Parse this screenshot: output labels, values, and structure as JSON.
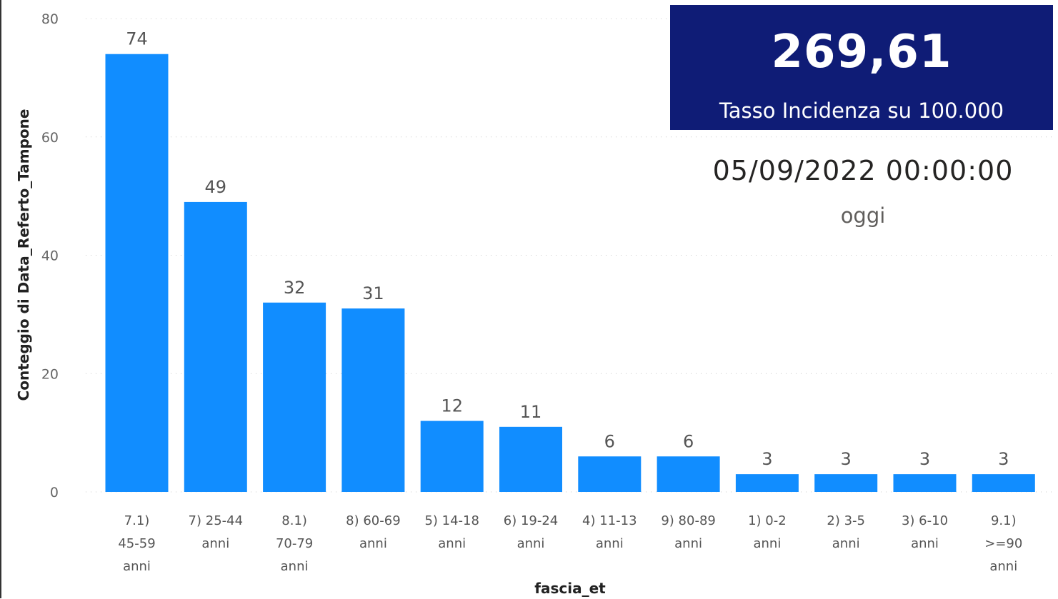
{
  "chart_data": {
    "type": "bar",
    "categories": [
      [
        "7.1)",
        "45-59",
        "anni"
      ],
      [
        "7) 25-44",
        "anni"
      ],
      [
        "8.1)",
        "70-79",
        "anni"
      ],
      [
        "8) 60-69",
        "anni"
      ],
      [
        "5) 14-18",
        "anni"
      ],
      [
        "6) 19-24",
        "anni"
      ],
      [
        "4) 11-13",
        "anni"
      ],
      [
        "9) 80-89",
        "anni"
      ],
      [
        "1) 0-2",
        "anni"
      ],
      [
        "2) 3-5",
        "anni"
      ],
      [
        "3) 6-10",
        "anni"
      ],
      [
        "9.1)",
        ">=90",
        "anni"
      ]
    ],
    "values": [
      74,
      49,
      32,
      31,
      12,
      11,
      6,
      6,
      3,
      3,
      3,
      3
    ],
    "xlabel": "fascia_et",
    "ylabel": "Conteggio di Data_Referto_Tampone",
    "ylim": [
      0,
      80
    ],
    "yticks": [
      0,
      20,
      40,
      60,
      80
    ],
    "grid": true,
    "bar_color": "#118DFF"
  },
  "kpi": {
    "value": "269,61",
    "label": "Tasso Incidenza su 100.000",
    "background": "#0F1C76"
  },
  "date_card": {
    "value": "05/09/2022 00:00:00",
    "label": "oggi"
  }
}
